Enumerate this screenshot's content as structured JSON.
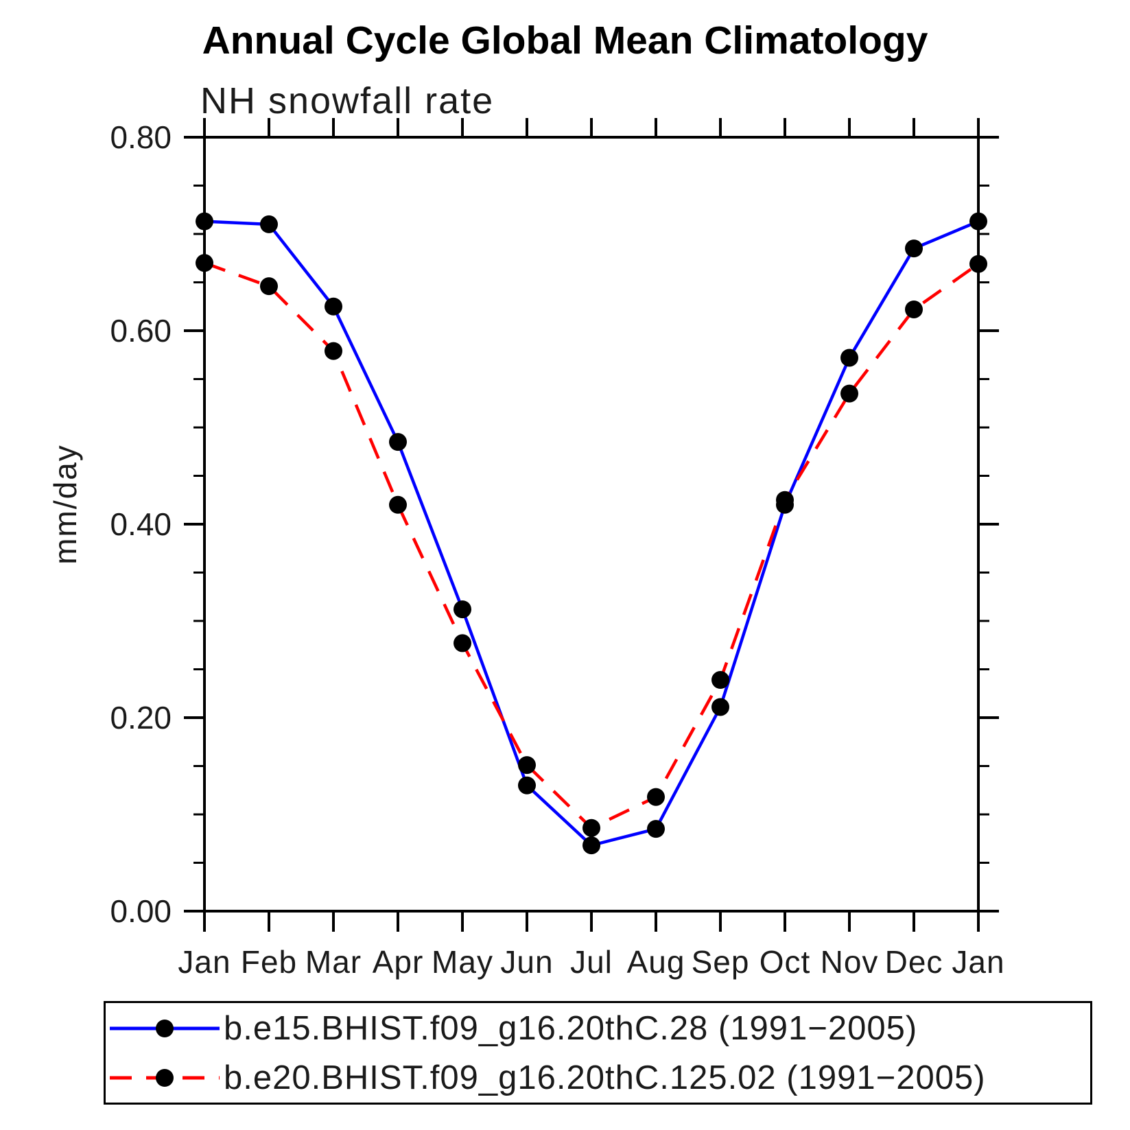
{
  "chart_data": {
    "type": "line",
    "title": "Annual Cycle Global Mean Climatology",
    "subtitle": "NH snowfall rate",
    "ylabel": "mm/day",
    "xlabel": "",
    "categories": [
      "Jan",
      "Feb",
      "Mar",
      "Apr",
      "May",
      "Jun",
      "Jul",
      "Aug",
      "Sep",
      "Oct",
      "Nov",
      "Dec",
      "Jan"
    ],
    "ylim": [
      0.0,
      0.8
    ],
    "y_major_ticks": [
      0.0,
      0.2,
      0.4,
      0.6,
      0.8
    ],
    "y_tick_labels": [
      "0.00",
      "0.20",
      "0.40",
      "0.60",
      "0.80"
    ],
    "y_minor_step": 0.05,
    "grid": false,
    "legend_position": "bottom",
    "axis_color": "#000000",
    "marker_color": "#000000",
    "series": [
      {
        "name": "b.e15.BHIST.f09_g16.20thC.28 (1991−2005)",
        "color": "#0000ff",
        "line_style": "solid",
        "marker": "circle",
        "values": [
          0.713,
          0.71,
          0.625,
          0.485,
          0.312,
          0.13,
          0.068,
          0.085,
          0.211,
          0.42,
          0.572,
          0.685,
          0.713
        ]
      },
      {
        "name": "b.e20.BHIST.f09_g16.20thC.125.02 (1991−2005)",
        "color": "#ff0000",
        "line_style": "dashed",
        "marker": "circle",
        "values": [
          0.67,
          0.646,
          0.579,
          0.42,
          0.277,
          0.151,
          0.086,
          0.118,
          0.239,
          0.425,
          0.535,
          0.622,
          0.669
        ]
      }
    ]
  }
}
